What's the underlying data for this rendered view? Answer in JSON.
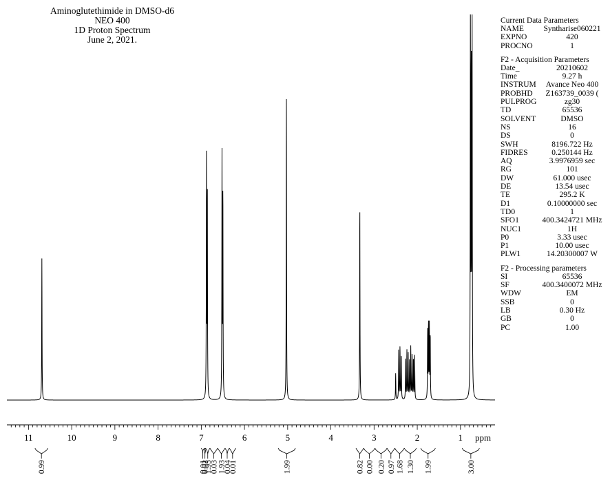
{
  "title": {
    "lines": [
      "Aminoglutethimide in DMSO-d6",
      "NEO 400",
      "1D Proton Spectrum",
      "June 2, 2021."
    ]
  },
  "parameters": {
    "sections": [
      {
        "header": "Current Data Parameters",
        "rows": [
          {
            "name": "NAME",
            "value": "Syntharise060221"
          },
          {
            "name": "EXPNO",
            "value": "420"
          },
          {
            "name": "PROCNO",
            "value": "1"
          }
        ]
      },
      {
        "header": "F2 - Acquisition Parameters",
        "rows": [
          {
            "name": "Date_",
            "value": "20210602"
          },
          {
            "name": "Time",
            "value": "9.27 h"
          },
          {
            "name": "INSTRUM",
            "value": "Avance Neo 400"
          },
          {
            "name": "PROBHD",
            "value": "Z163739_0039 ("
          },
          {
            "name": "PULPROG",
            "value": "zg30"
          },
          {
            "name": "TD",
            "value": "65536"
          },
          {
            "name": "SOLVENT",
            "value": "DMSO"
          },
          {
            "name": "NS",
            "value": "16"
          },
          {
            "name": "DS",
            "value": "0"
          },
          {
            "name": "SWH",
            "value": "8196.722 Hz"
          },
          {
            "name": "FIDRES",
            "value": "0.250144 Hz"
          },
          {
            "name": "AQ",
            "value": "3.9976959 sec"
          },
          {
            "name": "RG",
            "value": "101"
          },
          {
            "name": "DW",
            "value": "61.000 usec"
          },
          {
            "name": "DE",
            "value": "13.54 usec"
          },
          {
            "name": "TE",
            "value": "295.2 K"
          },
          {
            "name": "D1",
            "value": "0.10000000 sec"
          },
          {
            "name": "TD0",
            "value": "1"
          },
          {
            "name": "SFO1",
            "value": "400.3424721 MHz"
          },
          {
            "name": "NUC1",
            "value": "1H"
          },
          {
            "name": "P0",
            "value": "3.33 usec"
          },
          {
            "name": "P1",
            "value": "10.00 usec"
          },
          {
            "name": "PLW1",
            "value": "14.20300007 W"
          }
        ]
      },
      {
        "header": "F2 - Processing parameters",
        "rows": [
          {
            "name": "SI",
            "value": "65536"
          },
          {
            "name": "SF",
            "value": "400.3400072 MHz"
          },
          {
            "name": "WDW",
            "value": "EM"
          },
          {
            "name": "SSB",
            "value": "0"
          },
          {
            "name": "LB",
            "value": "0.30 Hz"
          },
          {
            "name": "GB",
            "value": "0"
          },
          {
            "name": "PC",
            "value": "1.00"
          }
        ]
      }
    ]
  },
  "chart_data": {
    "type": "line",
    "xlabel": "ppm",
    "xlim": [
      11.5,
      0.2
    ],
    "x_reversed": true,
    "ylim": [
      0,
      1.0
    ],
    "grid": false,
    "ticks": [
      11,
      10,
      9,
      8,
      7,
      6,
      5,
      4,
      3,
      2,
      1
    ],
    "peaks": [
      {
        "shift": 10.69,
        "height": 0.375
      },
      {
        "shift": 6.88,
        "height": 0.64
      },
      {
        "shift": 6.86,
        "height": 0.56
      },
      {
        "shift": 6.52,
        "height": 0.64
      },
      {
        "shift": 6.5,
        "height": 0.55
      },
      {
        "shift": 5.03,
        "height": 0.81
      },
      {
        "shift": 3.33,
        "height": 0.52
      },
      {
        "shift": 2.5,
        "height": 0.07
      },
      {
        "shift": 2.43,
        "height": 0.13
      },
      {
        "shift": 2.4,
        "height": 0.14
      },
      {
        "shift": 2.37,
        "height": 0.12
      },
      {
        "shift": 2.27,
        "height": 0.11
      },
      {
        "shift": 2.24,
        "height": 0.13
      },
      {
        "shift": 2.21,
        "height": 0.12
      },
      {
        "shift": 2.18,
        "height": 0.1
      },
      {
        "shift": 2.15,
        "height": 0.14
      },
      {
        "shift": 2.12,
        "height": 0.12
      },
      {
        "shift": 2.09,
        "height": 0.11
      },
      {
        "shift": 2.06,
        "height": 0.12
      },
      {
        "shift": 1.76,
        "height": 0.18
      },
      {
        "shift": 1.74,
        "height": 0.2
      },
      {
        "shift": 1.72,
        "height": 0.19
      },
      {
        "shift": 1.7,
        "height": 0.17
      },
      {
        "shift": 0.77,
        "height": 1.0
      },
      {
        "shift": 0.75,
        "height": 0.88
      },
      {
        "shift": 0.73,
        "height": 0.99
      }
    ],
    "integrals": [
      {
        "from": 10.85,
        "to": 10.55,
        "value": "0.99"
      },
      {
        "from": 7.0,
        "to": 6.93,
        "value": "0.01"
      },
      {
        "from": 6.93,
        "to": 6.9,
        "value": "0.02"
      },
      {
        "from": 6.9,
        "to": 6.8,
        "value": "1.93"
      },
      {
        "from": 6.8,
        "to": 6.62,
        "value": "0.03"
      },
      {
        "from": 6.62,
        "to": 6.45,
        "value": "1.93"
      },
      {
        "from": 6.45,
        "to": 6.35,
        "value": "0.04"
      },
      {
        "from": 6.35,
        "to": 6.2,
        "value": "0.01"
      },
      {
        "from": 5.22,
        "to": 4.82,
        "value": "1.99"
      },
      {
        "from": 3.42,
        "to": 3.24,
        "value": "0.82"
      },
      {
        "from": 3.24,
        "to": 2.98,
        "value": "0.00"
      },
      {
        "from": 2.98,
        "to": 2.7,
        "value": "0.20"
      },
      {
        "from": 2.7,
        "to": 2.52,
        "value": "0.97"
      },
      {
        "from": 2.52,
        "to": 2.3,
        "value": "1.68"
      },
      {
        "from": 2.3,
        "to": 2.02,
        "value": "1.30"
      },
      {
        "from": 1.92,
        "to": 1.58,
        "value": "1.99"
      },
      {
        "from": 0.96,
        "to": 0.56,
        "value": "3.00"
      }
    ]
  }
}
